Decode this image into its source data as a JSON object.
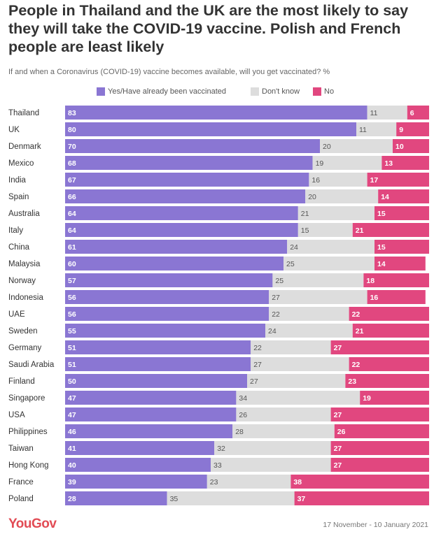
{
  "title": "People in Thailand and the UK are the most likely to say they will take the COVID-19 vaccine. Polish and French people are least likely",
  "subtitle": "If and when a Coronavirus (COVID-19) vaccine becomes available, will you get vaccinated? %",
  "footer": {
    "logo": "YouGov",
    "date_range": "17 November - 10 January 2021"
  },
  "colors": {
    "yes": "#8a76d3",
    "dont_know": "#dddddd",
    "no": "#e1477f"
  },
  "chart_data": {
    "type": "bar",
    "orientation": "horizontal",
    "stacked": true,
    "legend_position": "top",
    "categories": [
      "Thailand",
      "UK",
      "Denmark",
      "Mexico",
      "India",
      "Spain",
      "Australia",
      "Italy",
      "China",
      "Malaysia",
      "Norway",
      "Indonesia",
      "UAE",
      "Sweden",
      "Germany",
      "Saudi Arabia",
      "Finland",
      "Singapore",
      "USA",
      "Philippines",
      "Taiwan",
      "Hong Kong",
      "France",
      "Poland"
    ],
    "series": [
      {
        "name": "Yes/Have already been vaccinated",
        "values": [
          83,
          80,
          70,
          68,
          67,
          66,
          64,
          64,
          61,
          60,
          57,
          56,
          56,
          55,
          51,
          51,
          50,
          47,
          47,
          46,
          41,
          40,
          39,
          28
        ]
      },
      {
        "name": "Don't know",
        "values": [
          11,
          11,
          20,
          19,
          16,
          20,
          21,
          15,
          24,
          25,
          25,
          27,
          22,
          24,
          22,
          27,
          27,
          34,
          26,
          28,
          32,
          33,
          23,
          35
        ]
      },
      {
        "name": "No",
        "values": [
          6,
          9,
          10,
          13,
          17,
          14,
          15,
          21,
          15,
          14,
          18,
          16,
          22,
          21,
          27,
          22,
          23,
          19,
          27,
          26,
          27,
          27,
          38,
          37
        ]
      }
    ]
  }
}
